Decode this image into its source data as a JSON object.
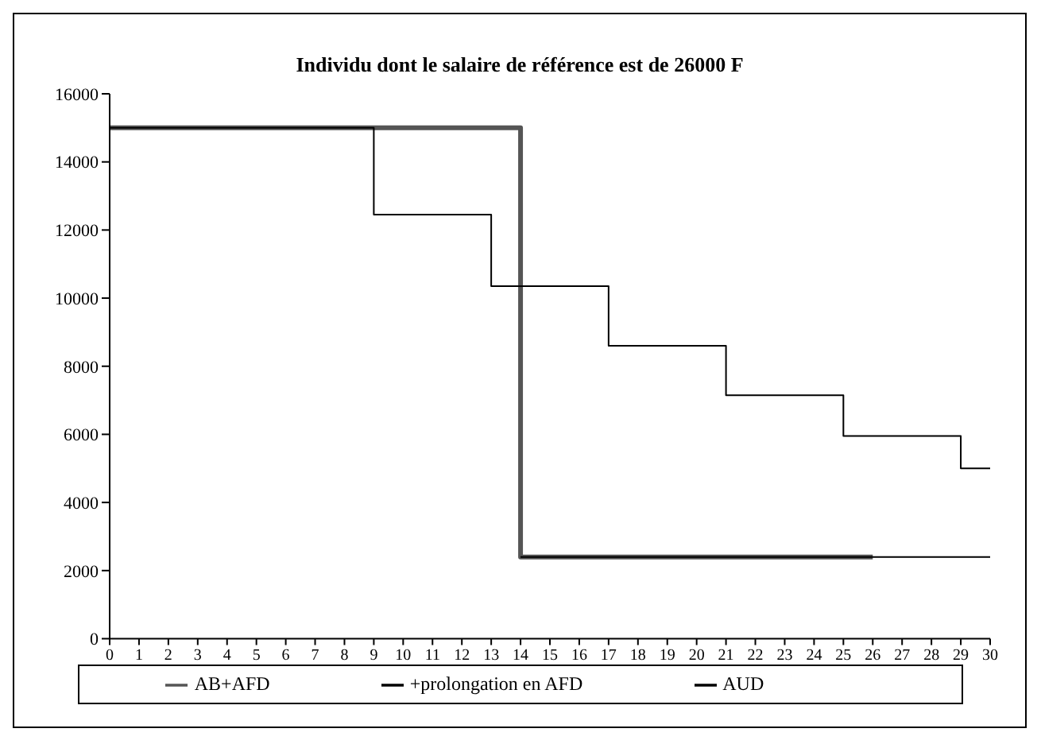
{
  "chart_data": {
    "type": "step",
    "title": "Individu dont le salaire de référence est de 26000 F",
    "series": [
      {
        "name": "AB+AFD",
        "color": "#555555",
        "x": [
          0,
          14,
          26
        ],
        "values": [
          15000,
          2400,
          2400
        ]
      },
      {
        "name": "+prolongation en AFD",
        "color": "#000000",
        "x": [
          14,
          30
        ],
        "values": [
          2400,
          2400
        ]
      },
      {
        "name": "AUD",
        "color": "#000000",
        "x": [
          0,
          9,
          13,
          17,
          21,
          25,
          29,
          30
        ],
        "values": [
          15000,
          12450,
          10350,
          8600,
          7150,
          5950,
          5000,
          5000
        ]
      }
    ],
    "xlim": [
      0,
      30
    ],
    "xticks": [
      0,
      1,
      2,
      3,
      4,
      5,
      6,
      7,
      8,
      9,
      10,
      11,
      12,
      13,
      14,
      15,
      16,
      17,
      18,
      19,
      20,
      21,
      22,
      23,
      24,
      25,
      26,
      27,
      28,
      29,
      30
    ],
    "ylim": [
      0,
      16000
    ],
    "yticks": [
      0,
      2000,
      4000,
      6000,
      8000,
      10000,
      12000,
      14000,
      16000
    ],
    "grid": false,
    "legend": "bottom",
    "marker": "none",
    "line_style": "solid"
  }
}
